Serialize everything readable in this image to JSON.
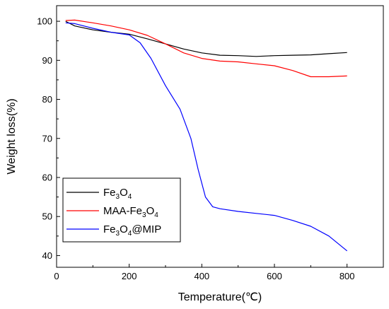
{
  "chart_data": {
    "type": "line",
    "xlabel": "Temperature(℃)",
    "ylabel": "Weight loss(%)",
    "xlim": [
      0,
      900
    ],
    "ylim": [
      37,
      104
    ],
    "xticks": [
      "0",
      "200",
      "400",
      "600",
      "800"
    ],
    "yticks": [
      "40",
      "50",
      "60",
      "70",
      "80",
      "90",
      "100"
    ],
    "grid": false,
    "legend_position": "bottom-left",
    "series": [
      {
        "name": "Fe3O4",
        "label_parts": [
          [
            "Fe",
            "3",
            "O",
            "4",
            ""
          ]
        ],
        "color": "#000000",
        "x": [
          25,
          50,
          100,
          150,
          200,
          250,
          300,
          350,
          400,
          450,
          500,
          550,
          600,
          650,
          700,
          750,
          800
        ],
        "y": [
          100,
          98.8,
          97.8,
          97.2,
          96.7,
          95.5,
          94.2,
          92.9,
          91.9,
          91.3,
          91.2,
          91.0,
          91.2,
          91.3,
          91.4,
          91.7,
          92.0
        ]
      },
      {
        "name": "MAA-Fe3O4",
        "label_parts": [
          [
            "MAA-Fe",
            "3",
            "O",
            "4",
            ""
          ]
        ],
        "color": "#ff0000",
        "x": [
          25,
          50,
          100,
          150,
          200,
          250,
          300,
          350,
          400,
          450,
          500,
          550,
          600,
          650,
          700,
          750,
          800
        ],
        "y": [
          100.2,
          100.3,
          99.6,
          98.8,
          97.8,
          96.4,
          94.2,
          91.9,
          90.5,
          89.8,
          89.6,
          89.1,
          88.6,
          87.4,
          85.8,
          85.8,
          86.0
        ]
      },
      {
        "name": "Fe3O4@MIP",
        "label_parts": [
          [
            "Fe",
            "3",
            "O",
            "4",
            "@MIP"
          ]
        ],
        "color": "#0000ff",
        "x": [
          25,
          50,
          100,
          150,
          200,
          230,
          260,
          300,
          340,
          370,
          390,
          410,
          430,
          450,
          500,
          550,
          600,
          650,
          700,
          750,
          800
        ],
        "y": [
          99.6,
          99.4,
          98.2,
          97.2,
          96.5,
          94.5,
          90.5,
          83.5,
          77.5,
          70.0,
          62.0,
          55.0,
          52.5,
          52.0,
          51.3,
          50.8,
          50.3,
          49.0,
          47.5,
          45.0,
          41.2
        ]
      }
    ]
  }
}
